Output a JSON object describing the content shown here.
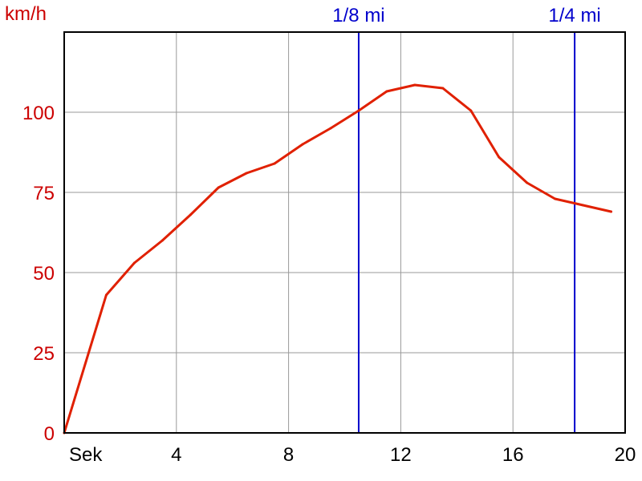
{
  "chart_data": {
    "type": "line",
    "title": "",
    "ylabel": "km/h",
    "xlabel": "Sek",
    "xlim": [
      0,
      20
    ],
    "ylim": [
      0,
      125
    ],
    "grid": true,
    "x_ticks": [
      4,
      8,
      12,
      16,
      20
    ],
    "y_ticks": [
      0,
      25,
      50,
      75,
      100
    ],
    "colors": {
      "series": "#e02000",
      "markers": "#0000cc",
      "ytext": "#cc0000",
      "grid": "#999999",
      "axes": "#000000"
    },
    "series": [
      {
        "x": [
          0,
          1.5,
          2.5,
          3.5,
          4.5,
          5.5,
          6.5,
          7.5,
          8.5,
          9.5,
          10.5,
          11.5,
          12.5,
          13.5,
          14.5,
          15.5,
          16.5,
          17.5,
          18.5,
          19.5
        ],
        "y": [
          0,
          43,
          53,
          60,
          68,
          76.5,
          81,
          84,
          90,
          95,
          100.5,
          106.5,
          108.5,
          107.5,
          100.5,
          86,
          78,
          73,
          71,
          69
        ]
      }
    ],
    "markers": [
      {
        "x": 10.5,
        "label": "1/8 mi"
      },
      {
        "x": 18.2,
        "label": "1/4 mi"
      }
    ]
  }
}
